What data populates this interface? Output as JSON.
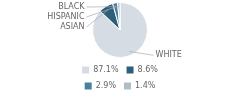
{
  "chart_data": {
    "type": "pie",
    "categories": [
      "WHITE",
      "ASIAN",
      "HISPANIC",
      "BLACK"
    ],
    "values": [
      87.1,
      8.6,
      2.9,
      1.4
    ],
    "value_labels": [
      "87.1%",
      "8.6%",
      "2.9%",
      "1.4%"
    ],
    "colors": [
      "#d6dce4",
      "#2e5f7a",
      "#4a7fa0",
      "#b0bec8"
    ],
    "legend": "bottom"
  }
}
